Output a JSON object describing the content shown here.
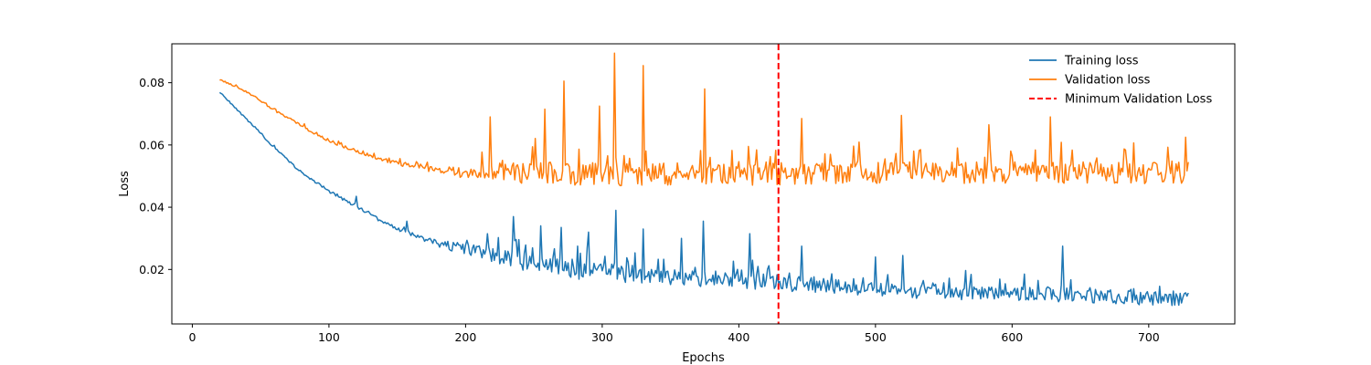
{
  "chart_data": {
    "type": "line",
    "title": "",
    "xlabel": "Epochs",
    "ylabel": "Loss",
    "xlim": [
      -15,
      763
    ],
    "ylim": [
      0.0025,
      0.0925
    ],
    "xticks": [
      0,
      100,
      200,
      300,
      400,
      500,
      600,
      700
    ],
    "yticks": [
      0.02,
      0.04,
      0.06,
      0.08
    ],
    "grid": false,
    "legend_position": "top-right",
    "x_start": 20,
    "x_end": 729,
    "series": [
      {
        "name": "Training loss",
        "color": "#1f77b4",
        "style": "solid",
        "anchors": [
          [
            20,
            0.077
          ],
          [
            40,
            0.068
          ],
          [
            60,
            0.059
          ],
          [
            80,
            0.051
          ],
          [
            100,
            0.045
          ],
          [
            120,
            0.04
          ],
          [
            140,
            0.035
          ],
          [
            160,
            0.031
          ],
          [
            180,
            0.028
          ],
          [
            200,
            0.026
          ],
          [
            220,
            0.024
          ],
          [
            250,
            0.021
          ],
          [
            300,
            0.018
          ],
          [
            350,
            0.017
          ],
          [
            400,
            0.0155
          ],
          [
            450,
            0.0145
          ],
          [
            500,
            0.013
          ],
          [
            550,
            0.012
          ],
          [
            600,
            0.0115
          ],
          [
            650,
            0.011
          ],
          [
            700,
            0.01
          ],
          [
            729,
            0.01
          ]
        ],
        "spikes": [
          [
            120,
            0.0435
          ],
          [
            157,
            0.0355
          ],
          [
            216,
            0.0315
          ],
          [
            235,
            0.037
          ],
          [
            255,
            0.034
          ],
          [
            270,
            0.0335
          ],
          [
            290,
            0.032
          ],
          [
            310,
            0.039
          ],
          [
            330,
            0.033
          ],
          [
            358,
            0.03
          ],
          [
            374,
            0.0355
          ],
          [
            408,
            0.0315
          ],
          [
            446,
            0.0275
          ],
          [
            500,
            0.024
          ],
          [
            520,
            0.0245
          ],
          [
            637,
            0.0275
          ],
          [
            727,
            0.0125
          ]
        ],
        "noise_amp": [
          [
            20,
            0.0004
          ],
          [
            150,
            0.001
          ],
          [
            200,
            0.0035
          ],
          [
            250,
            0.0065
          ],
          [
            400,
            0.0055
          ],
          [
            500,
            0.005
          ],
          [
            729,
            0.0045
          ]
        ]
      },
      {
        "name": "Validation loss",
        "color": "#ff7f0e",
        "style": "solid",
        "anchors": [
          [
            20,
            0.081
          ],
          [
            40,
            0.077
          ],
          [
            60,
            0.071
          ],
          [
            80,
            0.066
          ],
          [
            100,
            0.061
          ],
          [
            120,
            0.058
          ],
          [
            140,
            0.055
          ],
          [
            160,
            0.053
          ],
          [
            180,
            0.051
          ],
          [
            200,
            0.0505
          ],
          [
            250,
            0.05
          ],
          [
            300,
            0.0495
          ],
          [
            400,
            0.0495
          ],
          [
            500,
            0.05
          ],
          [
            600,
            0.05
          ],
          [
            729,
            0.05
          ]
        ],
        "spikes": [
          [
            218,
            0.069
          ],
          [
            258,
            0.0715
          ],
          [
            272,
            0.0805
          ],
          [
            298,
            0.0725
          ],
          [
            309,
            0.0895
          ],
          [
            330,
            0.0855
          ],
          [
            375,
            0.078
          ],
          [
            446,
            0.0685
          ],
          [
            519,
            0.0695
          ],
          [
            583,
            0.0665
          ],
          [
            628,
            0.069
          ],
          [
            727,
            0.0625
          ]
        ],
        "noise_amp": [
          [
            20,
            0.0005
          ],
          [
            150,
            0.0012
          ],
          [
            200,
            0.004
          ],
          [
            250,
            0.0075
          ],
          [
            729,
            0.007
          ]
        ]
      },
      {
        "name": "Minimum Validation Loss",
        "color": "#ff0000",
        "style": "dashed",
        "vline_x": 429
      }
    ]
  }
}
